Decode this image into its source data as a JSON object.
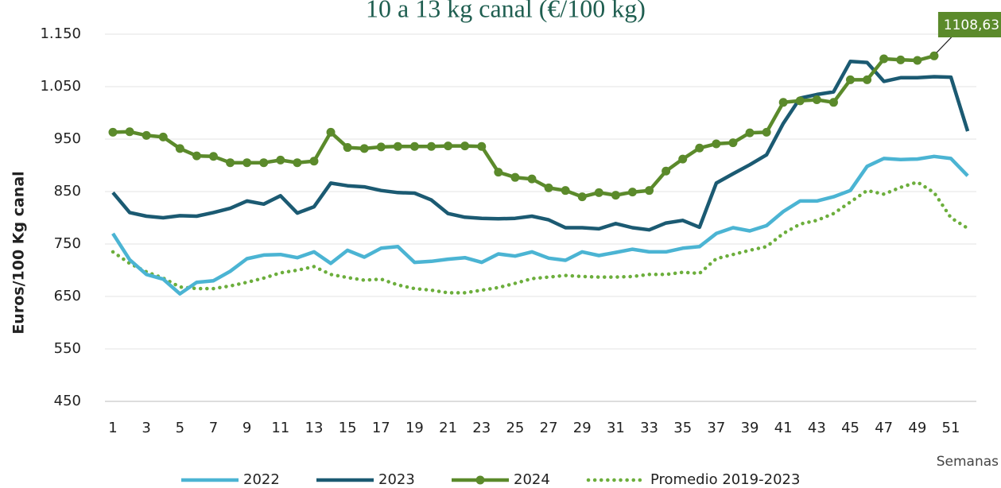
{
  "chart_data": {
    "type": "line",
    "title": "10 a 13 kg canal (€/100 kg)",
    "y_label": "Euros/100 Kg canal",
    "x_label": "Semanas",
    "categories": [
      1,
      null,
      3,
      null,
      5,
      null,
      7,
      null,
      9,
      null,
      11,
      null,
      13,
      null,
      15,
      null,
      17,
      null,
      19,
      null,
      21,
      null,
      23,
      null,
      25,
      null,
      27,
      null,
      29,
      null,
      31,
      null,
      33,
      null,
      35,
      null,
      37,
      null,
      39,
      null,
      41,
      null,
      43,
      null,
      45,
      null,
      47,
      null,
      49,
      null,
      51,
      null
    ],
    "ylim": [
      450,
      1150
    ],
    "yticks": [
      450,
      550,
      650,
      750,
      850,
      950,
      {
        "value": 1050,
        "label": "1.050"
      },
      {
        "value": 1150,
        "label": "1.150"
      }
    ],
    "grid": true,
    "legend": "bottom",
    "series": [
      {
        "name": "2022",
        "color": "#4bb4d3",
        "style": "solid",
        "values": [
          770,
          720,
          692,
          683,
          655,
          677,
          680,
          698,
          722,
          729,
          730,
          724,
          735,
          713,
          738,
          725,
          742,
          745,
          715,
          717,
          721,
          724,
          715,
          731,
          727,
          735,
          723,
          719,
          735,
          728,
          734,
          740,
          735,
          735,
          742,
          745,
          770,
          781,
          775,
          785,
          812,
          832,
          832,
          840,
          852,
          898,
          913,
          911,
          912,
          917,
          913,
          880
        ]
      },
      {
        "name": "2023",
        "color": "#1b5a72",
        "style": "solid",
        "values": [
          848,
          810,
          803,
          800,
          804,
          803,
          810,
          818,
          832,
          826,
          842,
          809,
          821,
          866,
          861,
          859,
          852,
          848,
          847,
          834,
          808,
          801,
          799,
          798,
          799,
          803,
          796,
          781,
          781,
          779,
          789,
          781,
          777,
          790,
          795,
          782,
          866,
          884,
          901,
          920,
          980,
          1028,
          1035,
          1040,
          1098,
          1096,
          1060,
          1067,
          1067,
          1069,
          1068,
          965
        ]
      },
      {
        "name": "2024",
        "color": "#5b8a2b",
        "style": "markers",
        "values": [
          963,
          964,
          957,
          954,
          932,
          918,
          917,
          905,
          905,
          905,
          910,
          905,
          908,
          963,
          934,
          932,
          935,
          936,
          936,
          936,
          937,
          937,
          936,
          887,
          877,
          874,
          857,
          852,
          840,
          848,
          843,
          849,
          852,
          889,
          912,
          933,
          941,
          943,
          962,
          963,
          1020,
          1023,
          1025,
          1020,
          1063,
          1063,
          1103,
          1101,
          1100,
          1108.63,
          null,
          null
        ],
        "value_labels": [
          null,
          null,
          null,
          null,
          null,
          null,
          null,
          null,
          null,
          null,
          null,
          null,
          null,
          null,
          null,
          null,
          null,
          null,
          null,
          null,
          null,
          null,
          null,
          null,
          null,
          null,
          null,
          null,
          null,
          null,
          null,
          null,
          null,
          null,
          null,
          null,
          null,
          null,
          null,
          null,
          null,
          null,
          null,
          null,
          null,
          null,
          null,
          null,
          null,
          "1108,63",
          null,
          null
        ]
      },
      {
        "name": "Promedio 2019-2023",
        "color": "#6cae3c",
        "style": "dotted",
        "values": [
          735,
          713,
          697,
          685,
          668,
          665,
          665,
          670,
          677,
          685,
          695,
          700,
          707,
          692,
          686,
          681,
          683,
          672,
          665,
          662,
          657,
          657,
          662,
          667,
          675,
          684,
          687,
          690,
          688,
          687,
          687,
          688,
          692,
          692,
          696,
          694,
          722,
          730,
          738,
          745,
          770,
          788,
          795,
          808,
          830,
          852,
          845,
          858,
          868,
          848,
          800,
          780
        ]
      }
    ]
  }
}
